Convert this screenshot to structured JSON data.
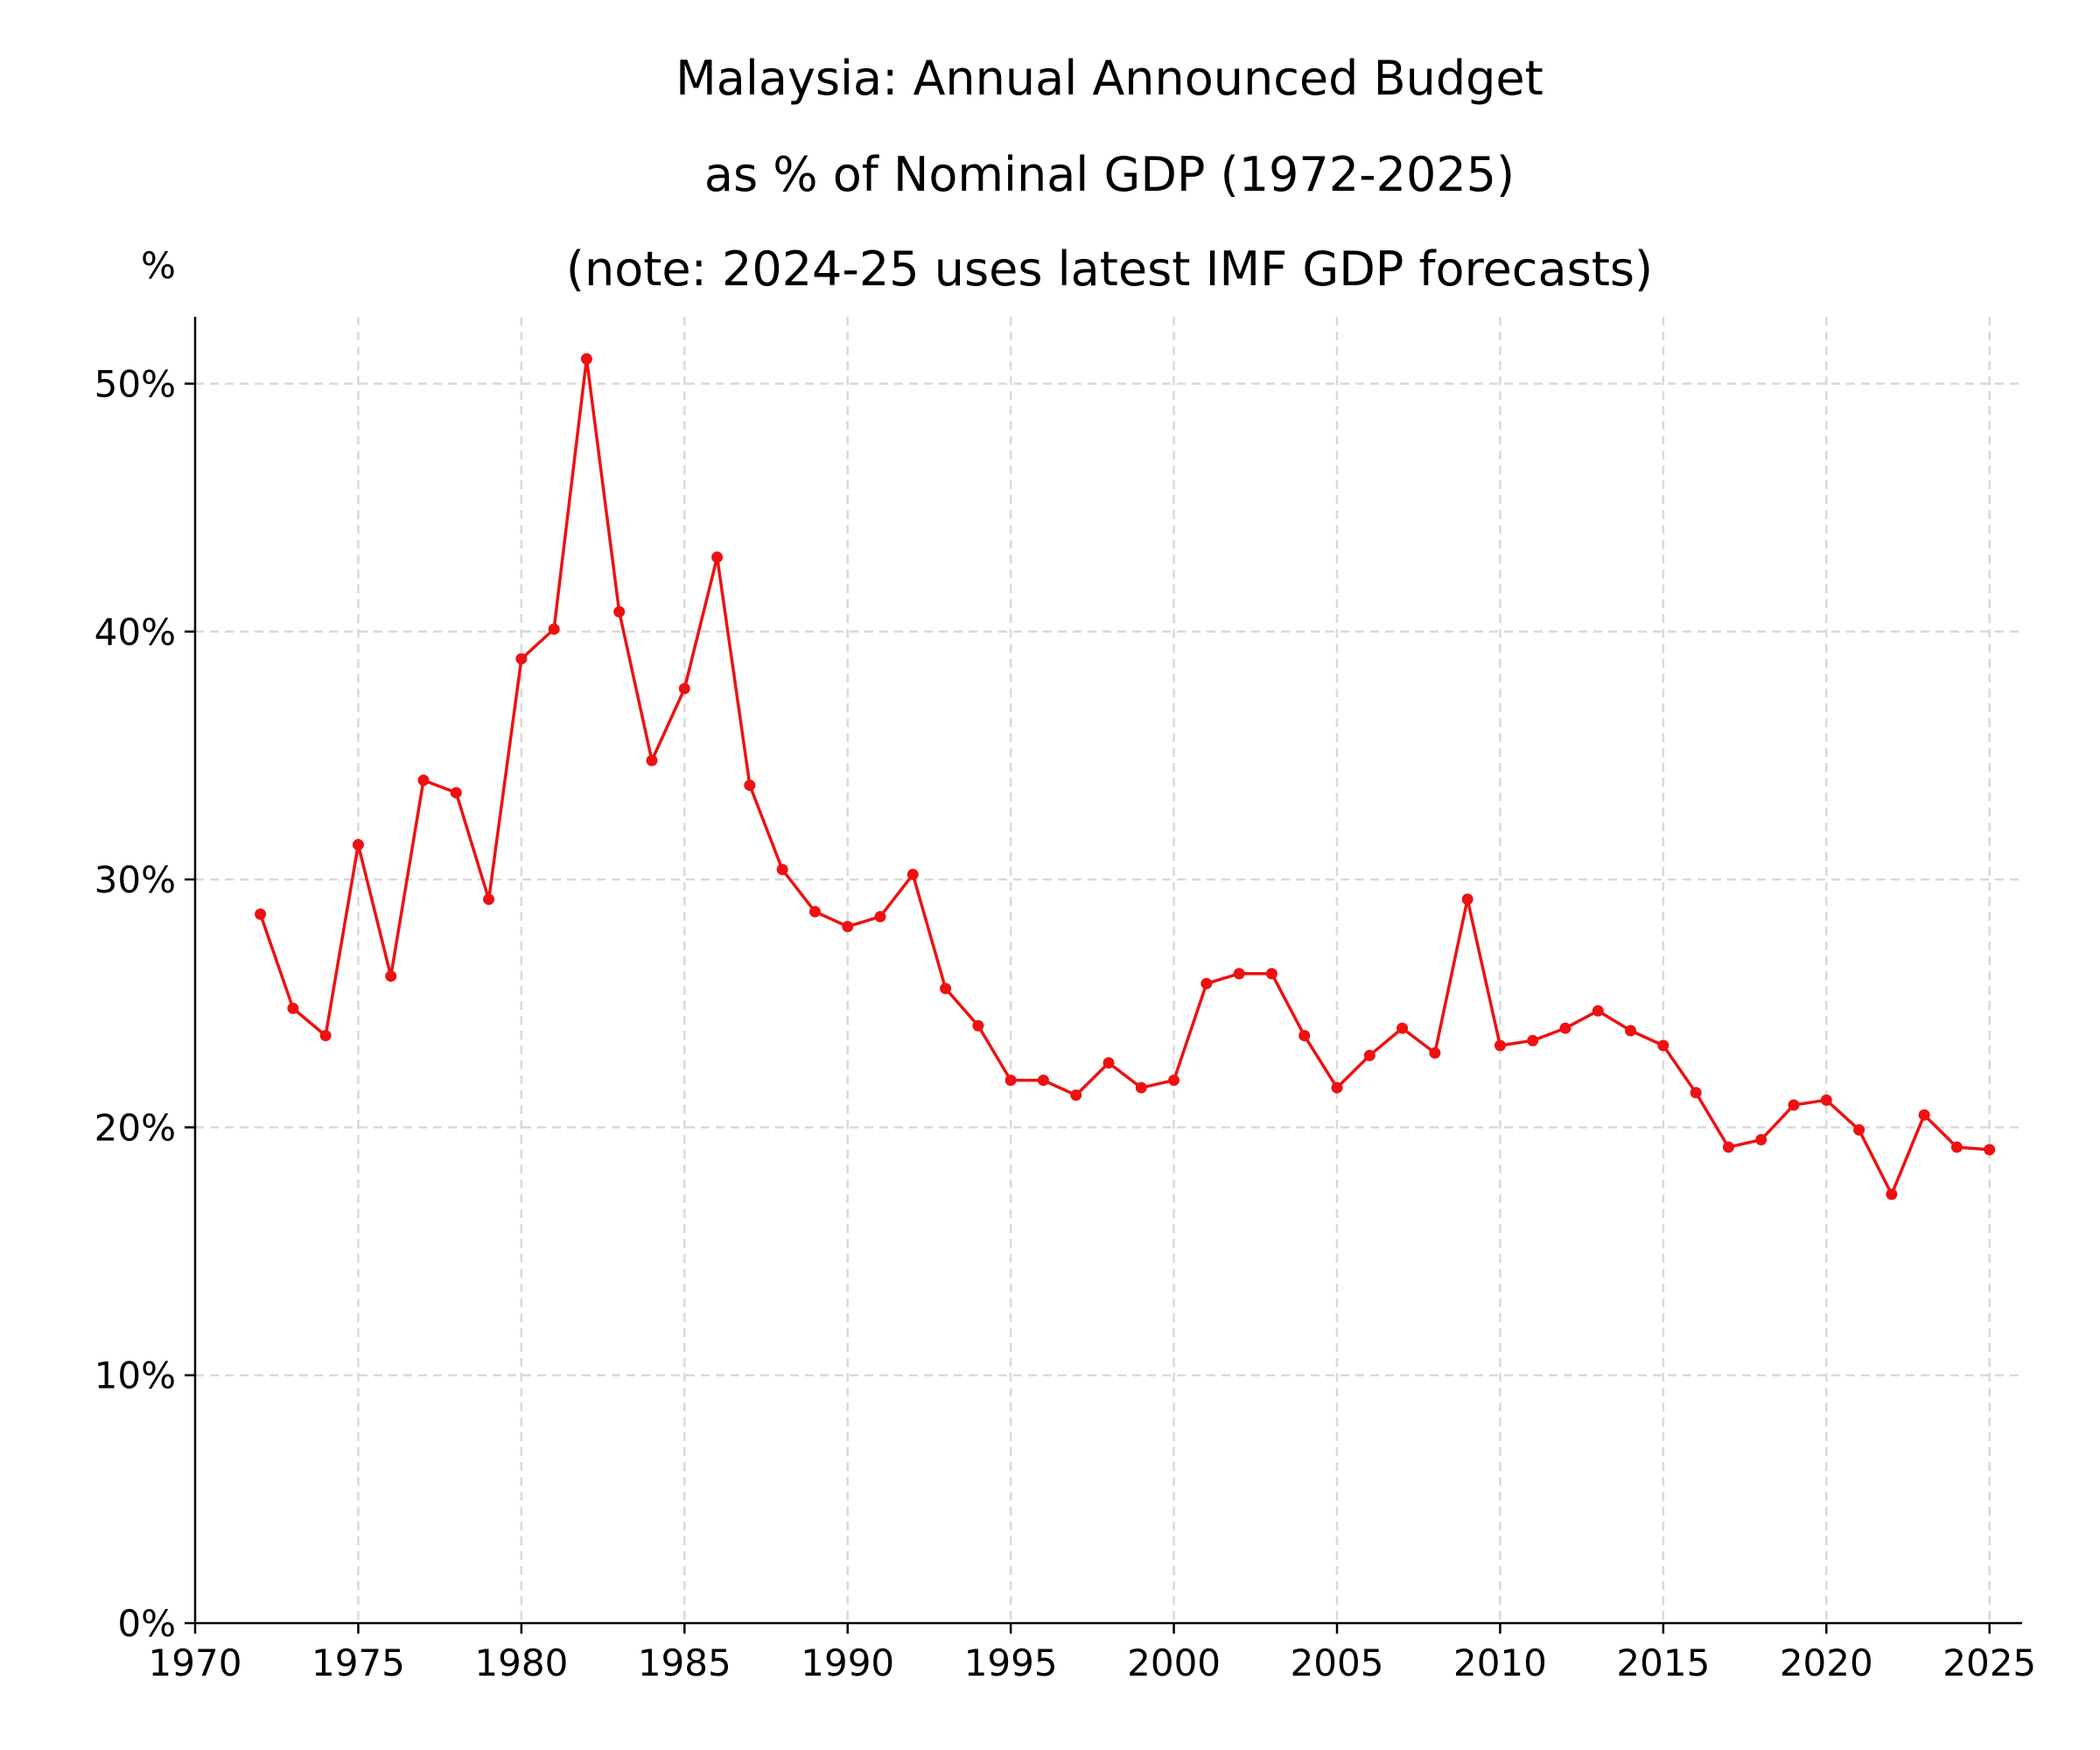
{
  "chart_data": {
    "type": "line",
    "title": [
      "Malaysia: Annual Announced Budget",
      "as % of Nominal GDP (1972-2025)",
      "(note: 2024-25 uses latest IMF GDP forecasts)"
    ],
    "ylabel": "%",
    "xlabel": "",
    "xlim": [
      1970,
      2026
    ],
    "ylim": [
      0,
      52.7
    ],
    "x_ticks": [
      1970,
      1975,
      1980,
      1985,
      1990,
      1995,
      2000,
      2005,
      2010,
      2015,
      2020,
      2025
    ],
    "y_ticks": [
      0,
      10,
      20,
      30,
      40,
      50
    ],
    "y_tick_labels": [
      "0%",
      "10%",
      "20%",
      "30%",
      "40%",
      "50%"
    ],
    "grid": true,
    "color": "#ee1111",
    "series": [
      {
        "x": [
          1972,
          1973,
          1974,
          1975,
          1976,
          1977,
          1978,
          1979,
          1980,
          1981,
          1982,
          1983,
          1984,
          1985,
          1986,
          1987,
          1988,
          1989,
          1990,
          1991,
          1992,
          1993,
          1994,
          1995,
          1996,
          1997,
          1998,
          1999,
          2000,
          2001,
          2002,
          2003,
          2004,
          2005,
          2006,
          2007,
          2008,
          2009,
          2010,
          2011,
          2012,
          2013,
          2014,
          2015,
          2016,
          2017,
          2018,
          2019,
          2020,
          2021,
          2022,
          2023,
          2024,
          2025
        ],
        "values": [
          28.6,
          24.8,
          23.7,
          31.4,
          26.1,
          34.0,
          33.5,
          29.2,
          38.9,
          40.1,
          51.0,
          40.8,
          34.8,
          37.7,
          43.0,
          33.8,
          30.4,
          28.7,
          28.1,
          28.5,
          30.2,
          25.6,
          24.1,
          21.9,
          21.9,
          21.3,
          22.6,
          21.6,
          21.9,
          25.8,
          26.2,
          26.2,
          23.7,
          21.6,
          22.9,
          24.0,
          23.0,
          29.2,
          23.3,
          23.5,
          24.0,
          24.7,
          23.9,
          23.3,
          21.4,
          19.2,
          19.5,
          20.9,
          21.1,
          19.9,
          17.3,
          20.5,
          19.2,
          19.1
        ]
      }
    ]
  }
}
